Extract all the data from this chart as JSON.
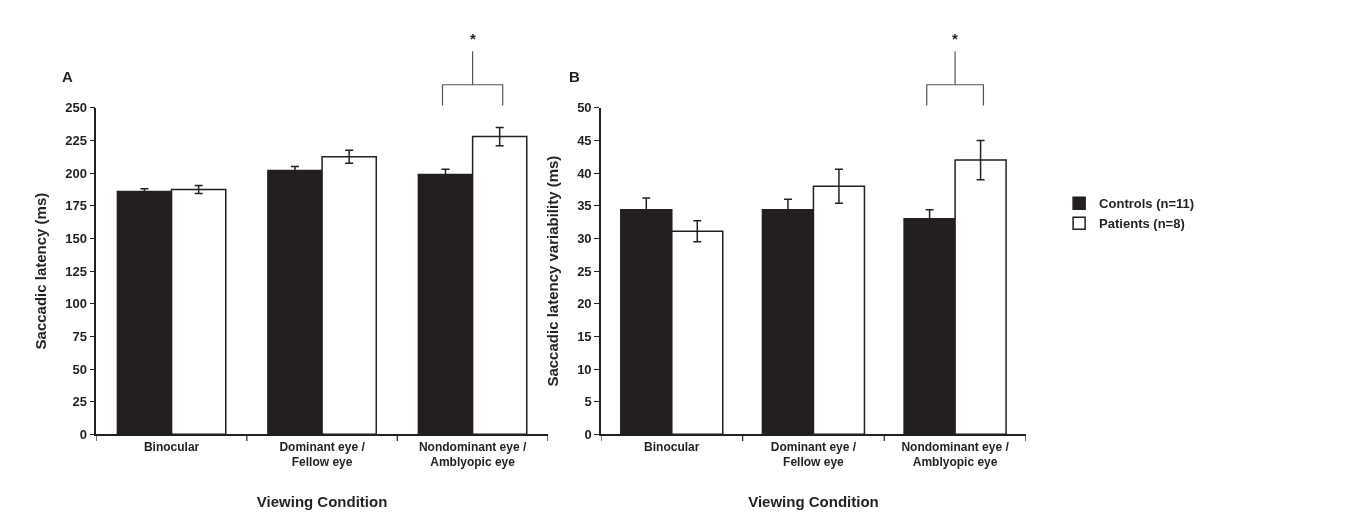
{
  "chart_data": [
    {
      "type": "bar",
      "title": "A",
      "xlabel": "Viewing Condition",
      "ylabel": "Saccadic latency (ms)",
      "categories": [
        "Binocular",
        "Dominant eye /\nFellow eye",
        "Nondominant eye /\nAmblyopic eye"
      ],
      "series": [
        {
          "color": "#231f20",
          "values": [
            186,
            202,
            199
          ],
          "errors": [
            2,
            3,
            4
          ]
        },
        {
          "color": "#ffffff",
          "values": [
            187.5,
            212.5,
            228
          ],
          "errors": [
            3,
            5,
            7
          ]
        }
      ],
      "ylim": [
        0,
        250
      ],
      "yticks": [
        0,
        25,
        50,
        75,
        100,
        125,
        150,
        175,
        200,
        225,
        250
      ],
      "legend": false,
      "annotations": [
        "*"
      ]
    },
    {
      "type": "bar",
      "title": "B",
      "xlabel": "Viewing Condition",
      "ylabel": "Saccadic latency variability (ms)",
      "categories": [
        "Binocular",
        "Dominant eye /\nFellow eye",
        "Nondominant eye /\nAmblyopic eye"
      ],
      "series": [
        {
          "name": "Controls (n=11)",
          "color": "#231f20",
          "values": [
            34.4,
            34.4,
            33
          ],
          "errors": [
            1.8,
            1.6,
            1.4
          ]
        },
        {
          "name": "Patients (n=8)",
          "color": "#ffffff",
          "values": [
            31.1,
            38,
            42
          ],
          "errors": [
            1.6,
            2.6,
            3
          ]
        }
      ],
      "ylim": [
        0,
        50
      ],
      "yticks": [
        0,
        5,
        10,
        15,
        20,
        25,
        30,
        35,
        40,
        45,
        50
      ],
      "legend": "right",
      "annotations": [
        "*"
      ]
    }
  ]
}
